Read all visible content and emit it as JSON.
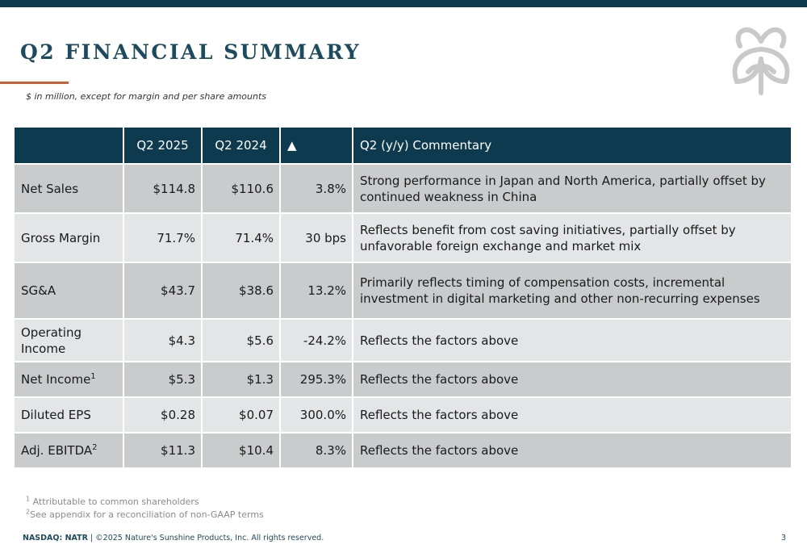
{
  "header": {
    "title": "Q2 FINANCIAL SUMMARY",
    "subtitle": "$ in million, except for margin and per share amounts"
  },
  "table": {
    "headers": [
      "",
      "Q2 2025",
      "Q2 2024",
      "▲",
      "Q2 (y/y) Commentary"
    ],
    "rows": [
      {
        "label": "Net Sales",
        "sup": "",
        "q2_2025": "$114.8",
        "q2_2024": "$110.6",
        "change": "3.8%",
        "commentary": "Strong performance in Japan and North America, partially offset by continued weakness in China"
      },
      {
        "label": "Gross Margin",
        "sup": "",
        "q2_2025": "71.7%",
        "q2_2024": "71.4%",
        "change": "30 bps",
        "commentary": "Reflects benefit from cost saving initiatives, partially offset by unfavorable foreign exchange and market mix"
      },
      {
        "label": "SG&A",
        "sup": "",
        "q2_2025": "$43.7",
        "q2_2024": "$38.6",
        "change": "13.2%",
        "commentary": "Primarily reflects timing of compensation costs, incremental investment in digital marketing and other non-recurring expenses"
      },
      {
        "label": "Operating Income",
        "sup": "",
        "q2_2025": "$4.3",
        "q2_2024": "$5.6",
        "change": "-24.2%",
        "commentary": "Reflects the factors above"
      },
      {
        "label": "Net Income",
        "sup": "1",
        "q2_2025": "$5.3",
        "q2_2024": "$1.3",
        "change": "295.3%",
        "commentary": "Reflects the factors above"
      },
      {
        "label": "Diluted EPS",
        "sup": "",
        "q2_2025": "$0.28",
        "q2_2024": "$0.07",
        "change": "300.0%",
        "commentary": "Reflects the factors above"
      },
      {
        "label": "Adj. EBITDA",
        "sup": "2",
        "q2_2025": "$11.3",
        "q2_2024": "$10.4",
        "change": "8.3%",
        "commentary": "Reflects the factors above"
      }
    ]
  },
  "footnotes": [
    {
      "mark": "1",
      "text": "Attributable to common shareholders"
    },
    {
      "mark": "2",
      "text": "See appendix for a reconciliation of non-GAAP terms"
    }
  ],
  "footer": {
    "ticker": "NASDAQ: NATR",
    "copyright": " | ©2025 Nature's Sunshine Products, Inc. All rights reserved.",
    "page_number": "3"
  },
  "colors": {
    "header_bg": "#0d3a4f",
    "title": "#1d4a5d",
    "accent": "#c8602f",
    "row_dark": "#c9cbcd",
    "row_light": "#e4e5e7"
  },
  "icons": {
    "logo": "leaf-logo-icon"
  }
}
